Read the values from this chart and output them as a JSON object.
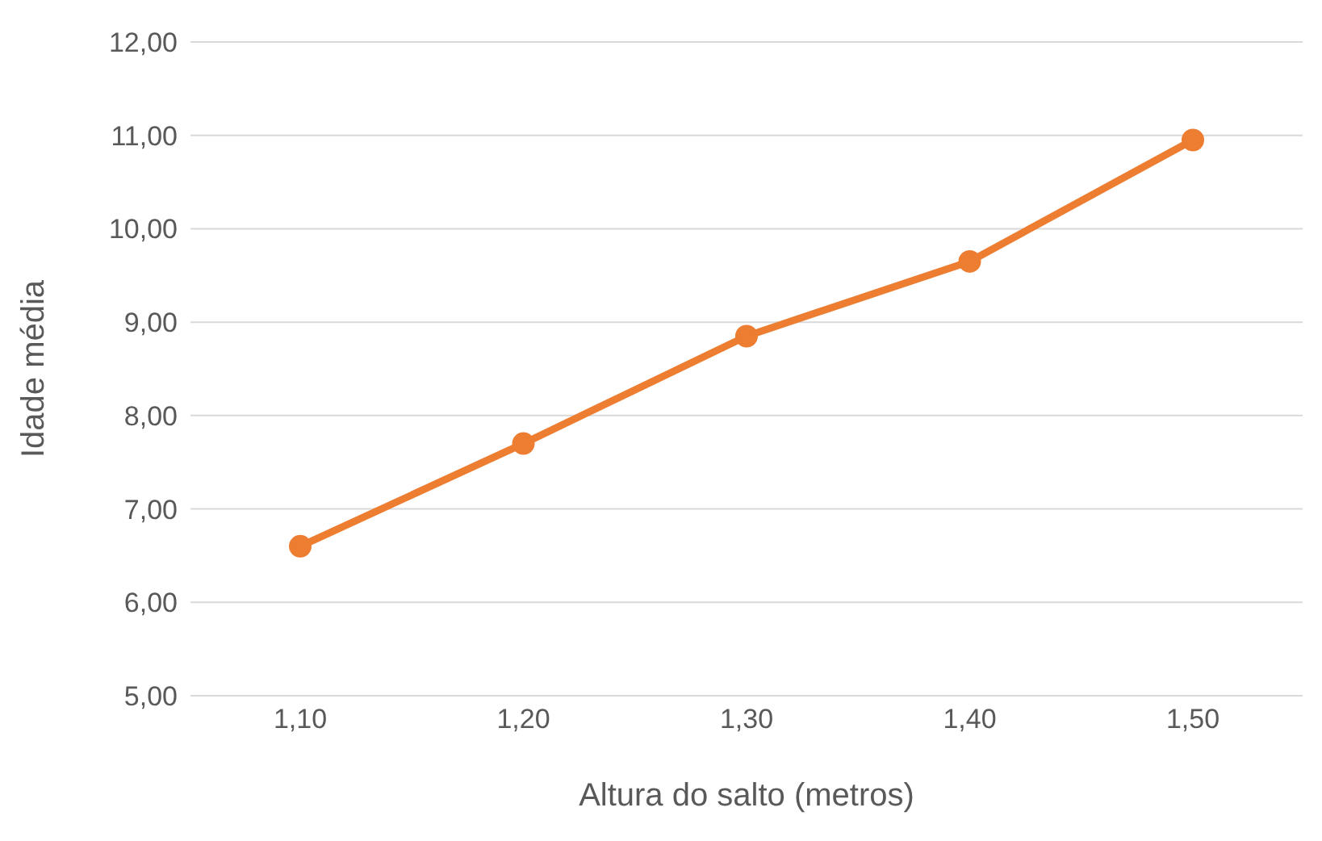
{
  "chart_data": {
    "type": "line",
    "xlabel": "Altura do salto (metros)",
    "ylabel": "Idade média",
    "categories": [
      "1,10",
      "1,20",
      "1,30",
      "1,40",
      "1,50"
    ],
    "series": [
      {
        "color": "#ed7d31",
        "values": [
          6.6,
          7.7,
          8.85,
          9.65,
          10.95
        ]
      }
    ],
    "ylim": [
      5,
      12
    ],
    "yticks": [
      {
        "value": 5,
        "label": "5,00"
      },
      {
        "value": 6,
        "label": "6,00"
      },
      {
        "value": 7,
        "label": "7,00"
      },
      {
        "value": 8,
        "label": "8,00"
      },
      {
        "value": 9,
        "label": "9,00"
      },
      {
        "value": 10,
        "label": "10,00"
      },
      {
        "value": 11,
        "label": "11,00"
      },
      {
        "value": 12,
        "label": "12,00"
      }
    ],
    "grid": "y",
    "legend": false,
    "marker": "circle",
    "line_style": "solid"
  }
}
